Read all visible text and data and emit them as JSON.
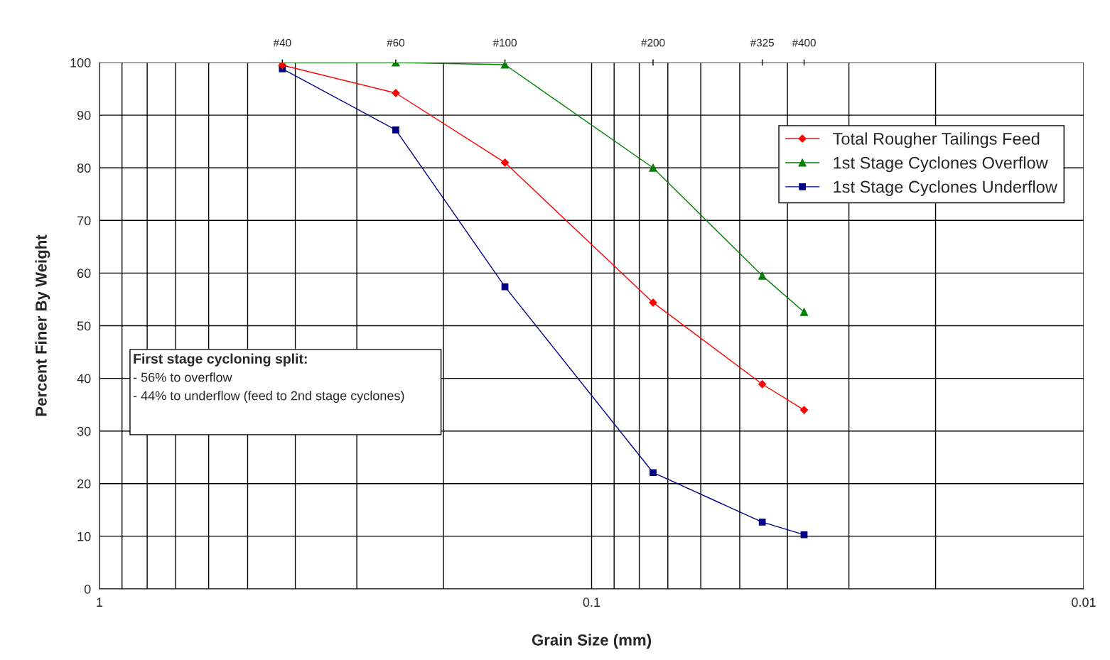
{
  "chart_data": {
    "type": "line",
    "xlabel": "Grain Size (mm)",
    "ylabel": "Percent Finer By Weight",
    "x": [
      0.425,
      0.25,
      0.15,
      0.075,
      0.045,
      0.037
    ],
    "series": [
      {
        "name": "Total Rougher Tailings Feed",
        "color": "#ff0000",
        "marker": "diamond",
        "values": [
          99.5,
          94.2,
          81.0,
          54.4,
          38.9,
          34.0
        ]
      },
      {
        "name": "1st Stage Cyclones Overflow",
        "color": "#008000",
        "marker": "triangle",
        "values": [
          100,
          100,
          99.6,
          80.0,
          59.5,
          52.6
        ]
      },
      {
        "name": "1st Stage Cyclones Underflow",
        "color": "#000080",
        "marker": "square",
        "values": [
          98.8,
          87.2,
          57.4,
          22.1,
          12.7,
          10.3
        ]
      }
    ],
    "log": "x",
    "xlim": [
      1,
      0.01
    ],
    "xticks": [
      1,
      0.1,
      0.01
    ],
    "ylim": [
      0,
      100
    ],
    "yticks": [
      0,
      10,
      20,
      30,
      40,
      50,
      60,
      70,
      80,
      90,
      100
    ],
    "grid": true,
    "legend": "top right",
    "line_style": "solid",
    "annotations": [
      "#40",
      "#60",
      "#100",
      "#200",
      "#325",
      "#400",
      "First stage cycloning split:",
      "- 56% to overflow",
      "- 44% to underflow (feed to 2nd stage cyclones)"
    ]
  }
}
